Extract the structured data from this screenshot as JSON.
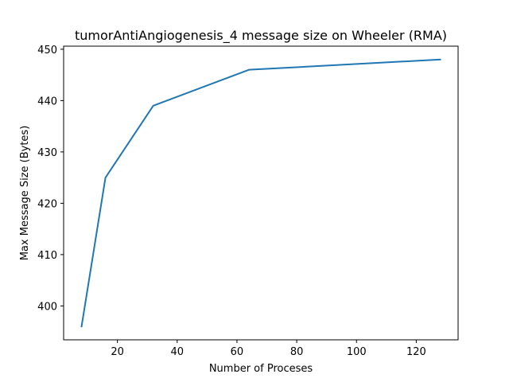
{
  "chart_data": {
    "type": "line",
    "title": "tumorAntiAngiogenesis_4 message size on Wheeler (RMA)",
    "xlabel": "Number of Proceses",
    "ylabel": "Max Message Size (Bytes)",
    "x": [
      8,
      16,
      32,
      64,
      128
    ],
    "series": [
      {
        "values": [
          396,
          425,
          439,
          446,
          448
        ],
        "color": "#1f77b4"
      }
    ],
    "xlim": [
      2,
      134
    ],
    "ylim": [
      393.4,
      450.6
    ],
    "xticks": [
      20,
      40,
      60,
      80,
      100,
      120
    ],
    "yticks": [
      400,
      410,
      420,
      430,
      440,
      450
    ],
    "grid": false,
    "legend": "none"
  }
}
